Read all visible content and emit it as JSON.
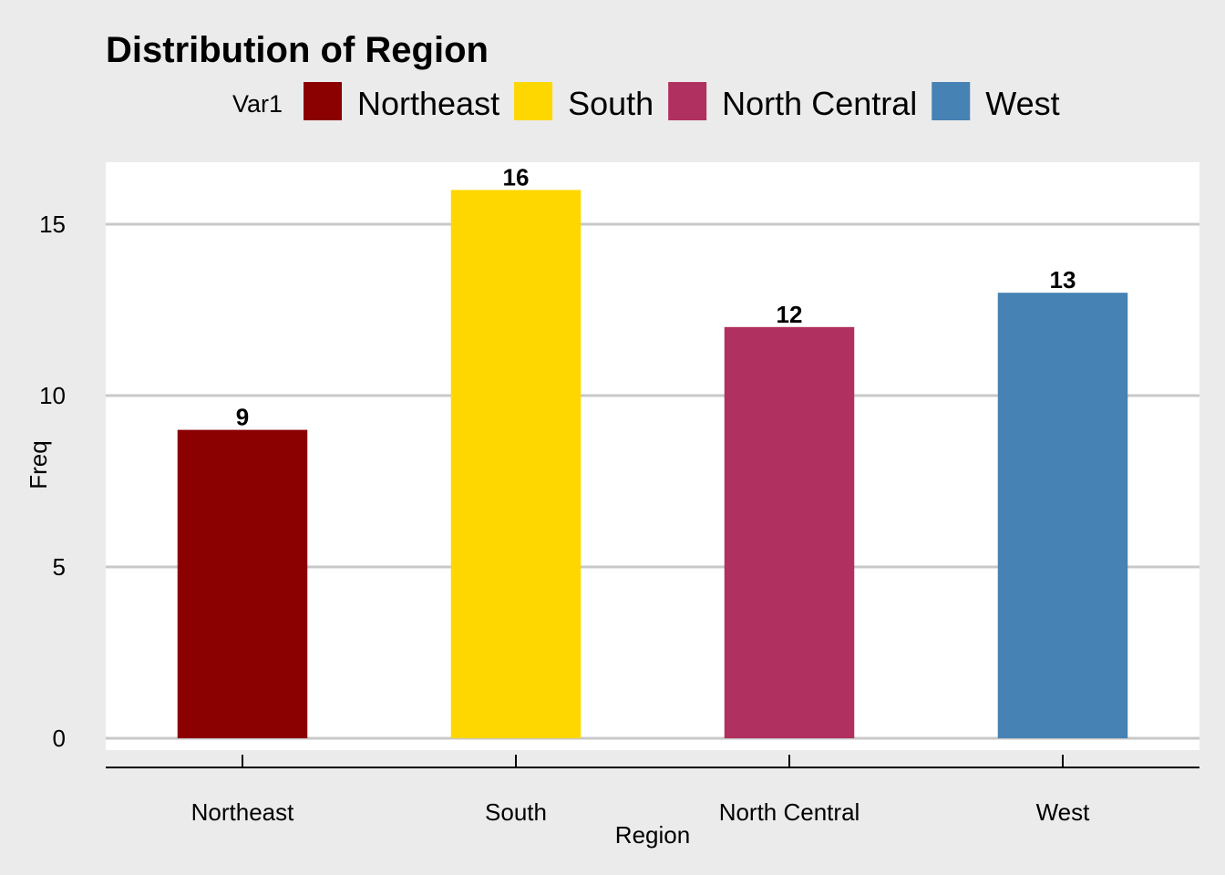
{
  "chart_data": {
    "type": "bar",
    "title": "Distribution of Region",
    "xlabel": "Region",
    "ylabel": "Freq",
    "categories": [
      "Northeast",
      "South",
      "North Central",
      "West"
    ],
    "values": [
      9,
      16,
      12,
      13
    ],
    "data_labels": [
      "9",
      "16",
      "12",
      "13"
    ],
    "colors": [
      "#8b0000",
      "#ffd700",
      "#b03060",
      "#4682b4"
    ],
    "ylim": [
      0,
      17.5
    ],
    "y_ticks": [
      0,
      5,
      10,
      15
    ],
    "y_tick_labels": [
      "0",
      "5",
      "10",
      "15"
    ],
    "grid": true,
    "legend": {
      "title": "Var1",
      "placement": "top",
      "entries": [
        "Northeast",
        "South",
        "North Central",
        "West"
      ]
    },
    "background": "#ebebeb",
    "panel_background": "#ffffff",
    "grid_color": "#c8c8c8"
  }
}
